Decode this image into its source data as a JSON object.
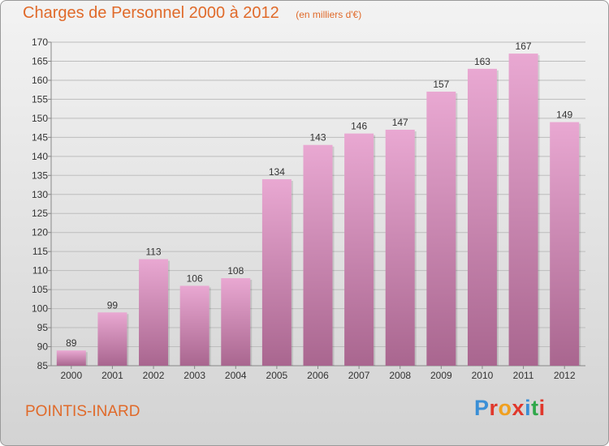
{
  "header": {
    "title": "Charges de Personnel 2000 à 2012",
    "subtitle": "(en milliers d'€)"
  },
  "footer": {
    "commune": "POINTIS-INARD",
    "logo_text": "Proxiti",
    "logo_colors": [
      "#3a8fd6",
      "#e0382c",
      "#f0a020",
      "#e0382c",
      "#3a8fd6",
      "#2fa84a",
      "#e0382c"
    ]
  },
  "colors": {
    "title": "#e06a2a",
    "bar_top": "#e9a8d2",
    "bar_bottom": "#a9668f",
    "grid": "#bdbdbd",
    "axis_text": "#333333"
  },
  "chart_data": {
    "type": "bar",
    "title": "Charges de Personnel 2000 à 2012",
    "subtitle": "(en milliers d'€)",
    "categories": [
      "2000",
      "2001",
      "2002",
      "2003",
      "2004",
      "2005",
      "2006",
      "2007",
      "2008",
      "2009",
      "2010",
      "2011",
      "2012"
    ],
    "values": [
      89,
      99,
      113,
      106,
      108,
      134,
      143,
      146,
      147,
      157,
      163,
      167,
      149
    ],
    "ylim": [
      85,
      170
    ],
    "ytick_step": 5,
    "grid": true,
    "data_labels": true
  }
}
